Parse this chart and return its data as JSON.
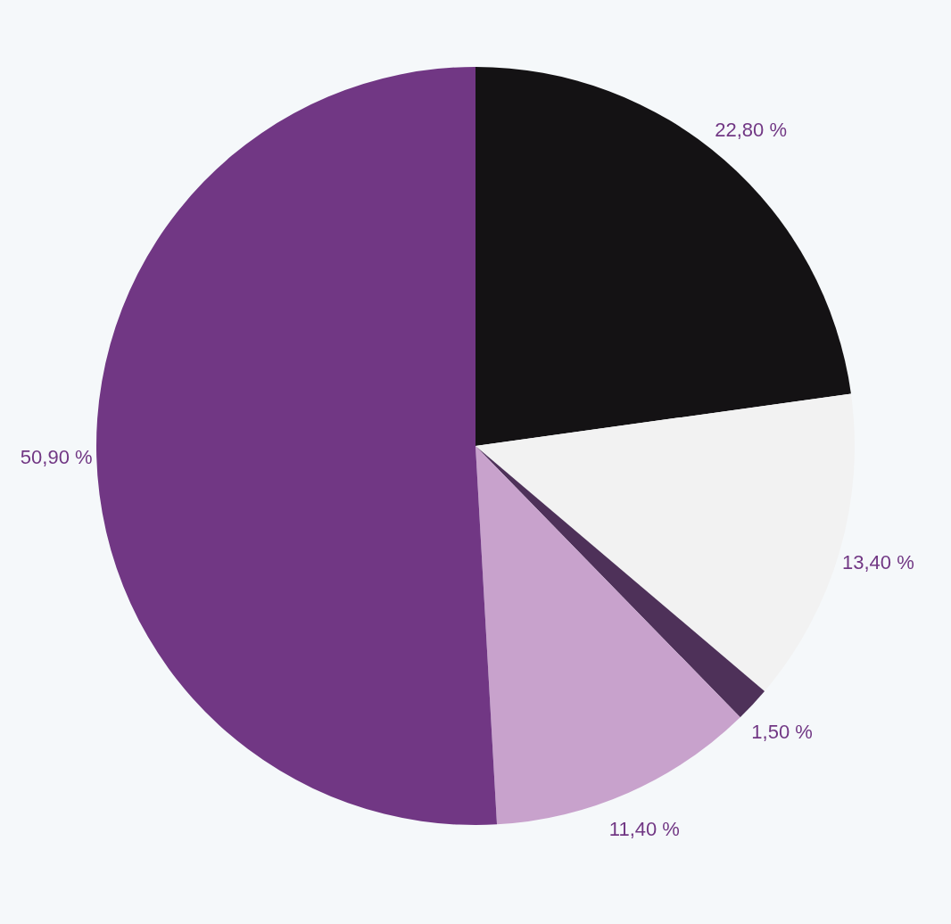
{
  "chart_data": {
    "type": "pie",
    "categories": [
      null,
      null,
      null,
      null,
      null
    ],
    "values": [
      22.8,
      13.4,
      1.5,
      11.4,
      50.9
    ],
    "colors": [
      "#141214",
      "#f2f2f2",
      "#4e3159",
      "#c8a2cc",
      "#713784"
    ],
    "value_labels": [
      "22,80 %",
      "13,40 %",
      "1,50 %",
      "11,40 %",
      "50,90 %"
    ]
  }
}
